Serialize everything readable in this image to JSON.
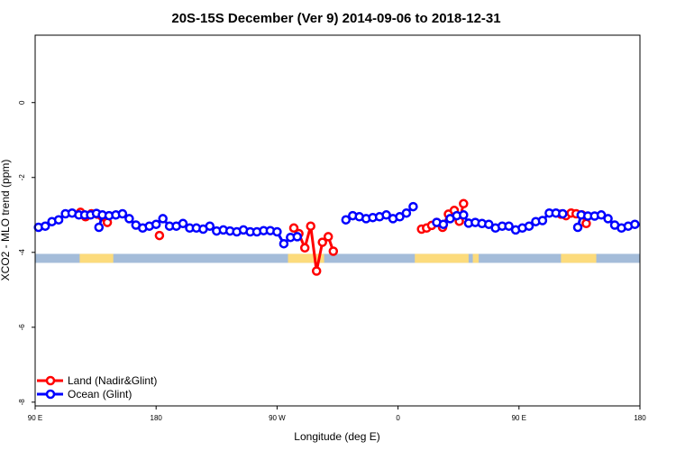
{
  "chart_data": {
    "type": "line",
    "title": "20S-15S December (Ver 9)   2014-09-06 to 2018-12-31",
    "xlabel": "Longitude (deg E)",
    "ylabel": "XCO2 - MLO trend (ppm)",
    "xlim": [
      90,
      450
    ],
    "ylim": [
      -8.1,
      1.8
    ],
    "x_ticks": [
      {
        "value": 90,
        "label": "90 E"
      },
      {
        "value": 162,
        "label": "180"
      },
      {
        "value": 234,
        "label": "90 W"
      },
      {
        "value": 306,
        "label": "0"
      },
      {
        "value": 378,
        "label": "90 E"
      },
      {
        "value": 450,
        "label": "180"
      }
    ],
    "y_ticks": [
      {
        "value": 0,
        "label": "0"
      },
      {
        "value": -2,
        "label": "-2"
      },
      {
        "value": -4,
        "label": "-4"
      },
      {
        "value": -6,
        "label": "-6"
      },
      {
        "value": -8,
        "label": "-8"
      }
    ],
    "grid": false,
    "legend_position": "bottom-left",
    "surface_band": {
      "y_range": [
        -4.28,
        -4.04
      ],
      "ocean_color": "#a4bcd9",
      "land_color": "#fcdb7c",
      "land_segments": [
        [
          116.5,
          136.5
        ],
        [
          240.5,
          262
        ],
        [
          316,
          348
        ],
        [
          350.5,
          354
        ],
        [
          403,
          424
        ]
      ]
    },
    "series": [
      {
        "name": "Land (Nadir&Glint)",
        "color": "#ff0000",
        "segments": [
          [
            [
              117,
              -2.93
            ],
            [
              120,
              -3.05
            ],
            [
              123.5,
              -2.97
            ],
            [
              127,
              -2.98
            ],
            [
              130,
              -3.05
            ],
            [
              133,
              -3.2
            ]
          ],
          [
            [
              164,
              -3.55
            ]
          ],
          [
            [
              244,
              -3.35
            ],
            [
              247,
              -3.5
            ],
            [
              250.5,
              -3.88
            ],
            [
              254,
              -3.3
            ],
            [
              257.5,
              -4.5
            ],
            [
              261,
              -3.73
            ],
            [
              264.5,
              -3.58
            ],
            [
              267.5,
              -3.97
            ]
          ],
          [
            [
              320,
              -3.38
            ],
            [
              323,
              -3.35
            ],
            [
              326,
              -3.28
            ],
            [
              329,
              -3.2
            ],
            [
              332.5,
              -3.33
            ],
            [
              336,
              -2.98
            ],
            [
              339.5,
              -2.88
            ],
            [
              342.5,
              -3.17
            ],
            [
              345,
              -2.7
            ]
          ],
          [
            [
              403,
              -2.98
            ],
            [
              406,
              -3.02
            ],
            [
              409,
              -2.95
            ],
            [
              412,
              -2.97
            ],
            [
              415.5,
              -3.0
            ],
            [
              418,
              -3.23
            ]
          ]
        ]
      },
      {
        "name": "Ocean (Glint)",
        "color": "#0000ff",
        "segments": [
          [
            [
              92,
              -3.33
            ],
            [
              96,
              -3.3
            ],
            [
              100,
              -3.18
            ],
            [
              104,
              -3.13
            ],
            [
              108,
              -2.97
            ],
            [
              112,
              -2.95
            ],
            [
              116,
              -3.0
            ],
            [
              119.5,
              -3.0
            ],
            [
              123,
              -3.0
            ],
            [
              126.5,
              -2.96
            ]
          ],
          [
            [
              128,
              -3.33
            ],
            [
              130,
              -3.0
            ],
            [
              134,
              -3.02
            ],
            [
              138,
              -3.0
            ],
            [
              142,
              -2.97
            ],
            [
              146,
              -3.1
            ],
            [
              150,
              -3.27
            ],
            [
              154,
              -3.35
            ],
            [
              158,
              -3.3
            ],
            [
              162,
              -3.25
            ],
            [
              166,
              -3.1
            ],
            [
              170,
              -3.3
            ],
            [
              174,
              -3.3
            ],
            [
              178,
              -3.23
            ],
            [
              182,
              -3.35
            ],
            [
              186,
              -3.35
            ],
            [
              190,
              -3.38
            ],
            [
              194,
              -3.3
            ],
            [
              198,
              -3.43
            ],
            [
              202,
              -3.4
            ],
            [
              206,
              -3.43
            ],
            [
              210,
              -3.45
            ],
            [
              214,
              -3.4
            ],
            [
              218,
              -3.45
            ],
            [
              222,
              -3.45
            ],
            [
              226,
              -3.42
            ],
            [
              230,
              -3.42
            ],
            [
              234,
              -3.45
            ],
            [
              238,
              -3.77
            ],
            [
              242,
              -3.6
            ],
            [
              246,
              -3.58
            ]
          ],
          [
            [
              275,
              -3.13
            ],
            [
              279,
              -3.02
            ],
            [
              283,
              -3.05
            ],
            [
              287,
              -3.1
            ],
            [
              291,
              -3.07
            ],
            [
              295,
              -3.05
            ],
            [
              299,
              -3.0
            ],
            [
              303,
              -3.1
            ],
            [
              307,
              -3.05
            ],
            [
              311,
              -2.95
            ],
            [
              315,
              -2.78
            ]
          ],
          [
            [
              329,
              -3.2
            ],
            [
              333,
              -3.25
            ],
            [
              337,
              -3.1
            ],
            [
              341,
              -3.02
            ],
            [
              345,
              -3.0
            ],
            [
              348,
              -3.22
            ],
            [
              352,
              -3.2
            ],
            [
              356,
              -3.23
            ],
            [
              360,
              -3.25
            ],
            [
              364,
              -3.35
            ],
            [
              368,
              -3.3
            ],
            [
              372,
              -3.3
            ],
            [
              376,
              -3.4
            ],
            [
              380,
              -3.35
            ],
            [
              384,
              -3.3
            ],
            [
              388,
              -3.18
            ],
            [
              392,
              -3.15
            ],
            [
              396,
              -2.95
            ],
            [
              400,
              -2.95
            ],
            [
              404,
              -2.97
            ]
          ],
          [
            [
              413,
              -3.33
            ],
            [
              415,
              -3.0
            ],
            [
              419,
              -3.03
            ],
            [
              423,
              -3.03
            ],
            [
              427,
              -3.0
            ],
            [
              431,
              -3.1
            ],
            [
              435,
              -3.27
            ],
            [
              439,
              -3.35
            ],
            [
              443,
              -3.3
            ],
            [
              447,
              -3.25
            ]
          ]
        ]
      }
    ]
  }
}
